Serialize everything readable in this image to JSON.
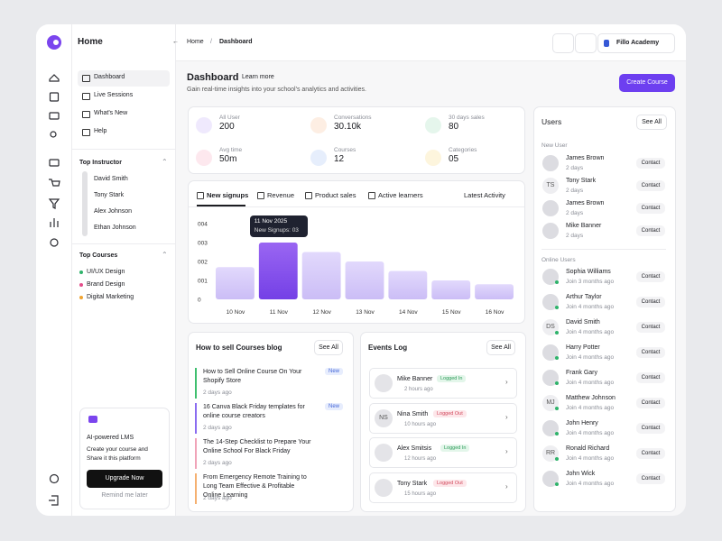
{
  "sidebar": {
    "brand": "Home",
    "nav": [
      "Dashboard",
      "Live Sessions",
      "What's New",
      "Help"
    ],
    "instructors_title": "Top Instructor",
    "instructors": [
      "David Smith",
      "Tony Stark",
      "Alex Johnson",
      "Ethan Johnson"
    ],
    "courses_title": "Top Courses",
    "courses": [
      "UI/UX Design",
      "Brand Design",
      "Digital Marketing"
    ],
    "promo": {
      "title": "AI-powered LMS",
      "text": "Create your course and Share it this platform",
      "button": "Upgrade Now",
      "link": "Remind me later"
    }
  },
  "topbar": {
    "breadcrumb": [
      "Home",
      "Dashboard"
    ],
    "account": "Fillo Academy"
  },
  "header": {
    "title": "Dashboard",
    "learn_more": "Learn more",
    "subtitle": "Gain real-time insights into your school's analytics and activities.",
    "button": "Create Course"
  },
  "stats": [
    {
      "label": "All User",
      "value": "200"
    },
    {
      "label": "Conversations",
      "value": "30.10k"
    },
    {
      "label": "30 days sales",
      "value": "80"
    },
    {
      "label": "Avg time",
      "value": "50m"
    },
    {
      "label": "Courses",
      "value": "12"
    },
    {
      "label": "Categories",
      "value": "05"
    }
  ],
  "chart": {
    "tabs": [
      "New signups",
      "Revenue",
      "Product sales",
      "Active learners"
    ],
    "latest": "Latest Activity",
    "type": "bar",
    "categories": [
      "10 Nov",
      "11 Nov",
      "12 Nov",
      "13 Nov",
      "14 Nov",
      "15 Nov",
      "16 Nov"
    ],
    "values": [
      1.7,
      3,
      2.5,
      2,
      1.5,
      1,
      0.8
    ],
    "ylim": [
      0,
      4
    ],
    "yticks": [
      0,
      {
        "value": 1,
        "label": "001"
      },
      {
        "value": 2,
        "label": "002"
      },
      {
        "value": 3,
        "label": "003"
      },
      {
        "value": 4,
        "label": "004"
      }
    ],
    "tooltip": {
      "date": "11 Nov 2025",
      "text": "New Signups: 03"
    }
  },
  "blog": {
    "title": "How to sell Courses blog",
    "see_all": "See All",
    "items": [
      {
        "title": "How to Sell Online Course On Your Shopify Store",
        "time": "2 days ago",
        "badge": "New"
      },
      {
        "title": "16 Canva Black Friday templates for online course creators",
        "time": "2 days ago",
        "badge": "New"
      },
      {
        "title": "The 14-Step Checklist to Prepare Your Online School For Black Friday",
        "time": "2 days ago"
      },
      {
        "title": "From Emergency Remote Training to Long Team Effective & Profitable Online Learning",
        "time": "2 days ago"
      }
    ]
  },
  "events": {
    "title": "Events Log",
    "see_all": "See All",
    "items": [
      {
        "name": "Mike Banner",
        "status": "Logged In",
        "time": "2 hours ago"
      },
      {
        "name": "Nina Smith",
        "initials": "NS",
        "status": "Logged Out",
        "time": "10 hours ago"
      },
      {
        "name": "Alex Smitsis",
        "status": "Logged In",
        "time": "12 hours ago"
      },
      {
        "name": "Tony Stark",
        "status": "Logged Out",
        "time": "15 hours ago"
      }
    ]
  },
  "users": {
    "title": "Users",
    "see_all": "See All",
    "new_title": "New User",
    "new": [
      {
        "name": "James Brown",
        "time": "2 days",
        "action": "Contact"
      },
      {
        "name": "Tony Stark",
        "initials": "TS",
        "time": "2 days",
        "action": "Contact"
      },
      {
        "name": "James Brown",
        "time": "2 days",
        "action": "Contact"
      },
      {
        "name": "Mike Banner",
        "time": "2 days",
        "action": "Contact"
      }
    ],
    "online_title": "Online Users",
    "online": [
      {
        "name": "Sophia Williams",
        "time": "Join 3 months ago",
        "action": "Contact"
      },
      {
        "name": "Arthur Taylor",
        "time": "Join 4 months ago",
        "action": "Contact"
      },
      {
        "name": "David Smith",
        "initials": "DS",
        "time": "Join 4 months ago",
        "action": "Contact"
      },
      {
        "name": "Harry Potter",
        "time": "Join 4 months ago",
        "action": "Contact"
      },
      {
        "name": "Frank Gary",
        "time": "Join 4 months ago",
        "action": "Contact"
      },
      {
        "name": "Matthew Johnson",
        "initials": "MJ",
        "time": "Join 4 months ago",
        "action": "Contact"
      },
      {
        "name": "John Henry",
        "time": "Join 4 months ago",
        "action": "Contact"
      },
      {
        "name": "Ronald Richard",
        "initials": "RR",
        "time": "Join 4 months ago",
        "action": "Contact"
      },
      {
        "name": "John Wick",
        "time": "Join 4 months ago",
        "action": "Contact"
      }
    ]
  }
}
